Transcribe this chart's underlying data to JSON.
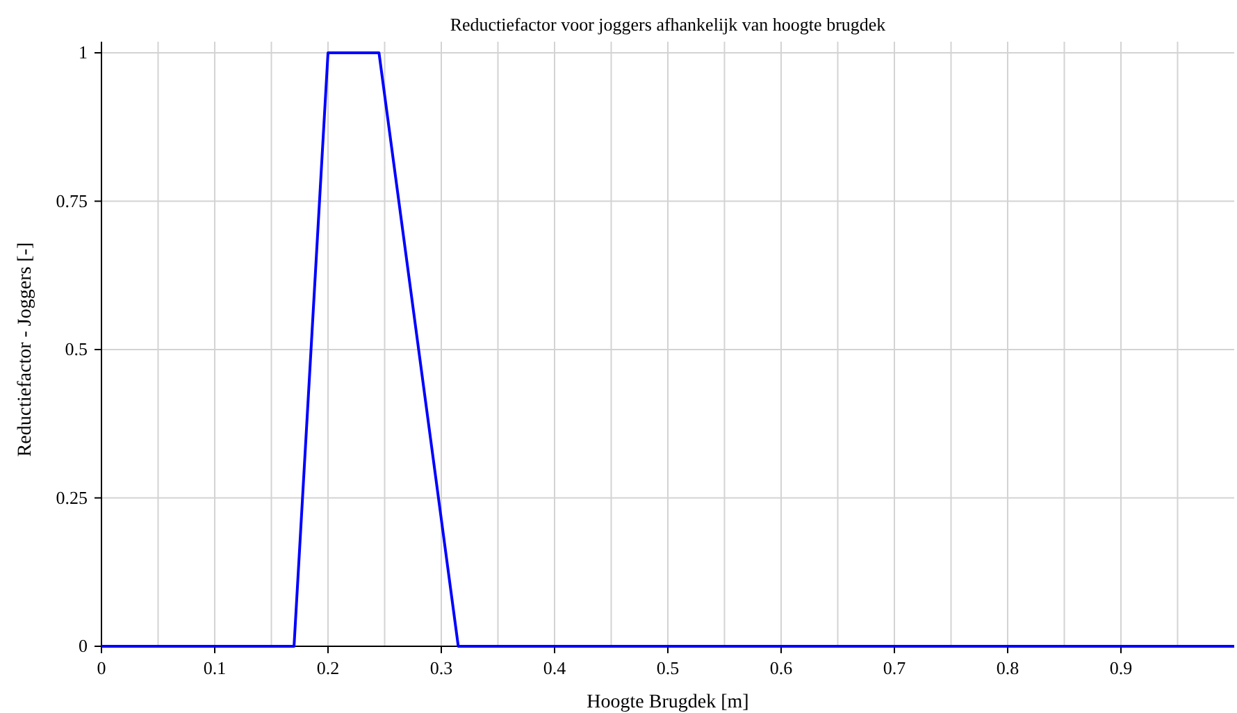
{
  "chart_data": {
    "type": "line",
    "title": "Reductiefactor voor joggers afhankelijk van hoogte brugdek",
    "xlabel": "Hoogte Brugdek [m]",
    "ylabel": "Reductiefactor - Joggers [-]",
    "x": [
      0,
      0.17,
      0.2,
      0.245,
      0.315,
      1
    ],
    "series": [
      {
        "color": "#0000ff",
        "values": [
          0,
          0,
          1,
          1,
          0,
          0
        ]
      }
    ],
    "xlim": [
      0,
      1
    ],
    "ylim": [
      0,
      1
    ],
    "xticks": [
      0,
      {
        "value": 0.05,
        "label": null
      },
      0.1,
      {
        "value": 0.15,
        "label": null
      },
      0.2,
      {
        "value": 0.25,
        "label": null
      },
      0.3,
      {
        "value": 0.35,
        "label": null
      },
      0.4,
      {
        "value": 0.45,
        "label": null
      },
      0.5,
      {
        "value": 0.55,
        "label": null
      },
      0.6,
      {
        "value": 0.65,
        "label": null
      },
      0.7,
      {
        "value": 0.75,
        "label": null
      },
      0.8,
      {
        "value": 0.85,
        "label": null
      },
      0.9,
      {
        "value": 0.95,
        "label": null
      }
    ],
    "yticks": [
      0,
      0.25,
      0.5,
      0.75,
      1
    ],
    "grid": true,
    "marker": "none",
    "line_style": "solid"
  }
}
